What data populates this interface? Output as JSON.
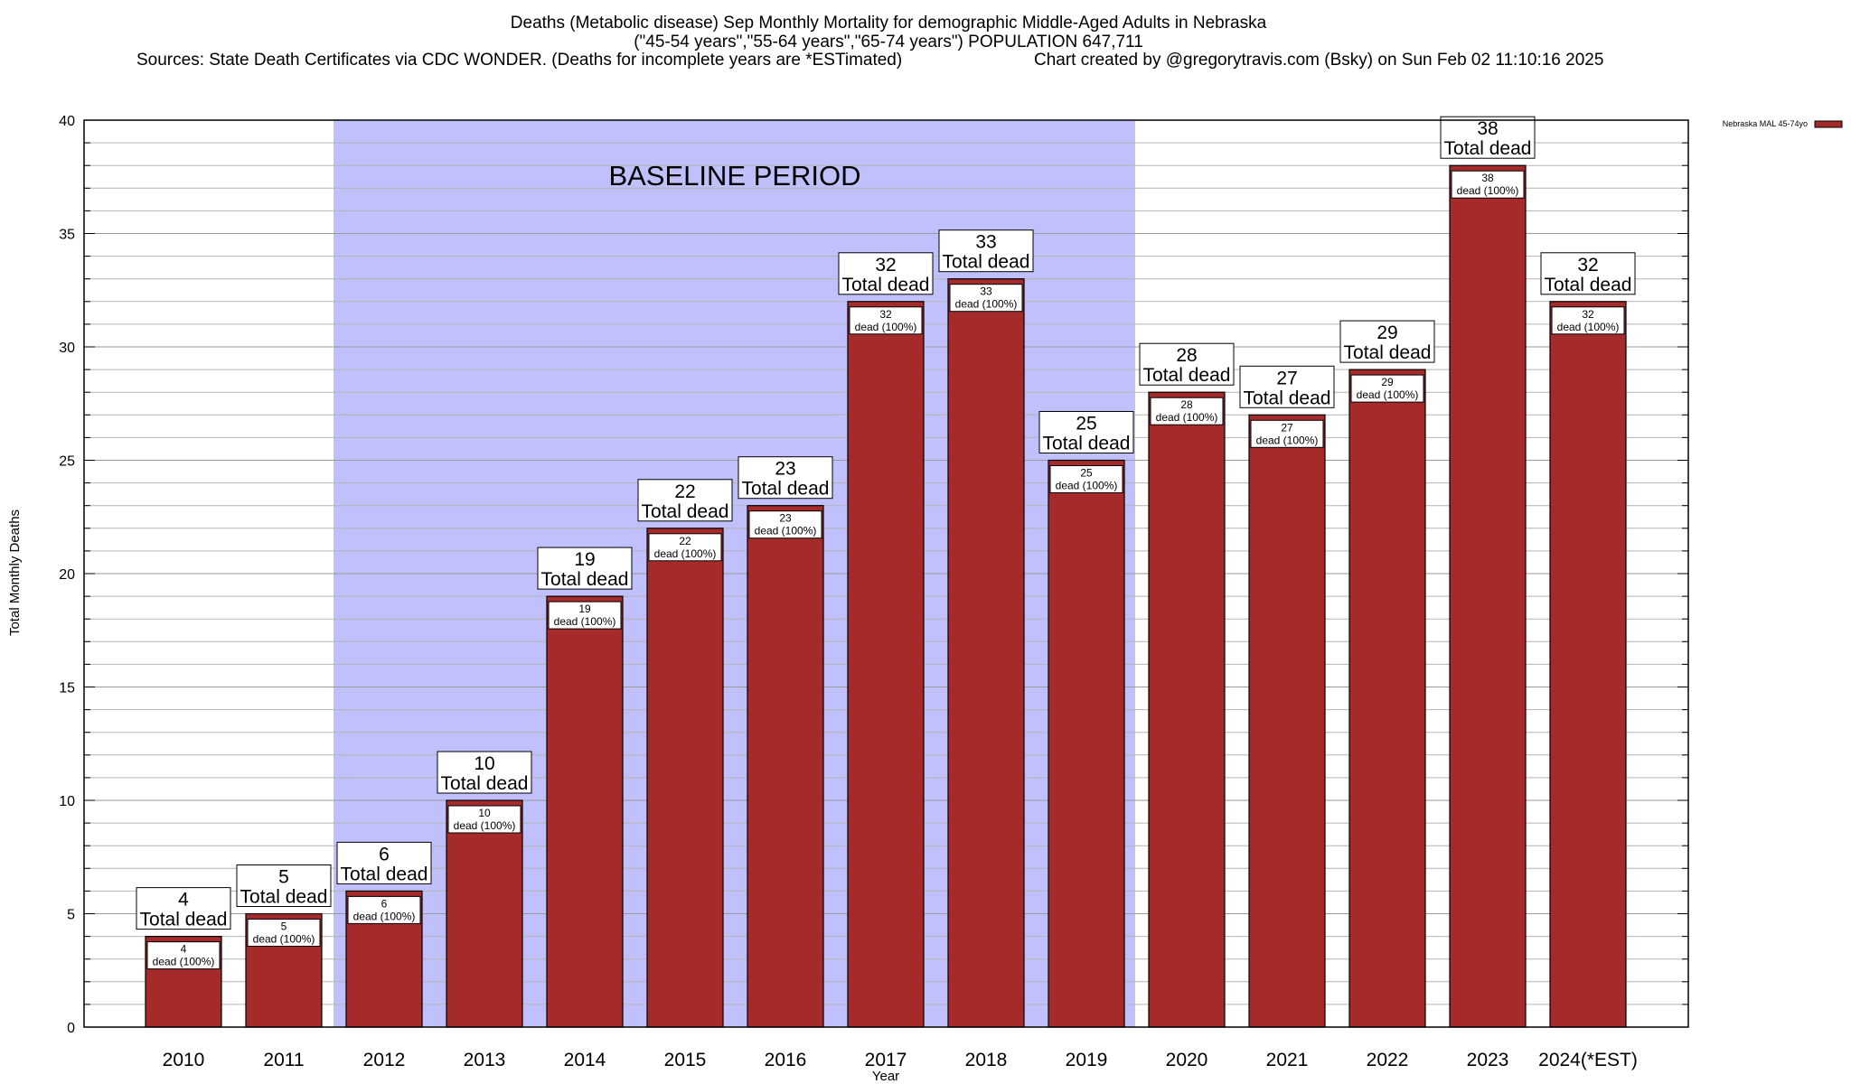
{
  "header": {
    "title_line1": "Deaths (Metabolic disease) Sep Monthly Mortality for demographic Middle-Aged Adults in Nebraska",
    "title_line2": "(\"45-54 years\",\"55-64 years\",\"65-74 years\") POPULATION 647,711",
    "title_line3_left": "Sources: State Death Certificates via CDC WONDER. (Deaths for incomplete years are *ESTimated)",
    "title_line3_right": "Chart created by @gregorytravis.com (Bsky) on Sun Feb 02 11:10:16 2025"
  },
  "chart_data": {
    "type": "bar",
    "categories": [
      "2010",
      "2011",
      "2012",
      "2013",
      "2014",
      "2015",
      "2016",
      "2017",
      "2018",
      "2019",
      "2020",
      "2021",
      "2022",
      "2023",
      "2024(*EST)"
    ],
    "series": [
      {
        "name": "Nebraska MAL 45-74yo",
        "values": [
          4,
          5,
          6,
          10,
          19,
          22,
          23,
          32,
          33,
          25,
          28,
          27,
          29,
          38,
          32
        ],
        "color": "#a52a2a"
      }
    ],
    "xlabel": "Year",
    "ylabel": "Total Monthly Deaths",
    "ylim": [
      0,
      40
    ],
    "yticks": [
      0,
      5,
      10,
      15,
      20,
      25,
      30,
      35,
      40
    ],
    "grid": true,
    "legend_position": "top-right",
    "baseline": {
      "label": "BASELINE PERIOD",
      "from": "2012",
      "to": "2019",
      "color": "#c0c0fc"
    },
    "bar_label_top_suffix": "Total dead",
    "bar_label_inner_suffix": "dead (100%)"
  }
}
